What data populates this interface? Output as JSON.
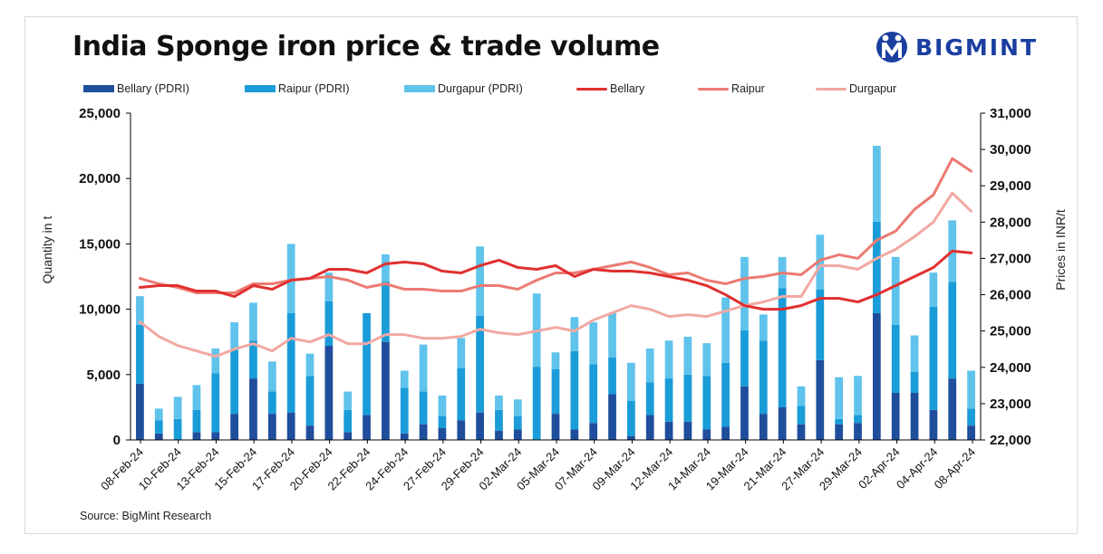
{
  "title": "India Sponge iron price & trade volume",
  "logo_text": "BIGMINT",
  "source": "Source: BigMint Research",
  "colors": {
    "bellary_bar": "#1f4e9c",
    "raipur_bar": "#1a9cd8",
    "durgapur_bar": "#60c3ec",
    "bellary_line": "#e0302f",
    "raipur_line": "#ec7a72",
    "durgapur_line": "#f2a8a2",
    "logo": "#1a3fa0"
  },
  "legend": {
    "bellary_pdri": "Bellary (PDRI)",
    "raipur_pdri": "Raipur (PDRI)",
    "durgapur_pdri": "Durgapur (PDRI)",
    "bellary": "Bellary",
    "raipur": "Raipur",
    "durgapur": "Durgapur"
  },
  "chart_data": {
    "type": "bar",
    "title": "India Sponge iron price & trade volume",
    "ylabel": "Quantity in t",
    "y2label": "Prices in INR/t",
    "ylim": [
      0,
      25000
    ],
    "y2lim": [
      22000,
      31000
    ],
    "yticks": [
      "0",
      "5,000",
      "10,000",
      "15,000",
      "20,000",
      "25,000"
    ],
    "y2ticks": [
      "22,000",
      "23,000",
      "24,000",
      "25,000",
      "26,000",
      "27,000",
      "28,000",
      "29,000",
      "30,000",
      "31,000"
    ],
    "x_tick_labels": [
      "08-Feb-24",
      "10-Feb-24",
      "13-Feb-24",
      "15-Feb-24",
      "17-Feb-24",
      "20-Feb-24",
      "22-Feb-24",
      "24-Feb-24",
      "27-Feb-24",
      "29-Feb-24",
      "02-Mar-24",
      "05-Mar-24",
      "07-Mar-24",
      "09-Mar-24",
      "12-Mar-24",
      "14-Mar-24",
      "19-Mar-24",
      "21-Mar-24",
      "27-Mar-24",
      "29-Mar-24",
      "02-Apr-24",
      "04-Apr-24",
      "08-Apr-24"
    ],
    "grid": false,
    "legend_position": "top",
    "bar_series": [
      {
        "name": "Bellary (PDRI)",
        "values": [
          4300,
          500,
          0,
          600,
          600,
          2000,
          4700,
          2000,
          2100,
          1100,
          7200,
          600,
          1900,
          7500,
          500,
          1200,
          900,
          1500,
          2100,
          700,
          800,
          0,
          2000,
          800,
          1300,
          3500,
          300,
          1900,
          1400,
          1400,
          800,
          1000,
          4100,
          2000,
          2500,
          1200,
          6100,
          1200,
          1300,
          9700,
          3600,
          3600,
          2300,
          4700,
          1100
        ]
      },
      {
        "name": "Raipur (PDRI)",
        "values": [
          4500,
          1000,
          1600,
          1700,
          4500,
          4900,
          2900,
          1700,
          7600,
          3800,
          3400,
          1700,
          7800,
          4600,
          3500,
          2500,
          900,
          4000,
          7400,
          1600,
          1000,
          5600,
          3400,
          6000,
          4500,
          2800,
          2700,
          2500,
          3300,
          3600,
          4100,
          4900,
          4300,
          5600,
          9100,
          1400,
          5400,
          400,
          600,
          7000,
          5200,
          1600,
          7900,
          7400,
          1300
        ]
      },
      {
        "name": "Durgapur (PDRI)",
        "values": [
          2200,
          900,
          1700,
          1900,
          1900,
          2100,
          2900,
          2300,
          5300,
          1700,
          2200,
          1400,
          0,
          2100,
          1300,
          3600,
          1600,
          2300,
          5300,
          1100,
          1300,
          5600,
          1300,
          2600,
          3200,
          3400,
          2900,
          2600,
          2900,
          2900,
          2500,
          5000,
          5600,
          2000,
          2400,
          1500,
          4200,
          3200,
          3000,
          5800,
          5200,
          2800,
          2600,
          4700,
          2900
        ]
      }
    ],
    "line_series": [
      {
        "name": "Bellary",
        "values": [
          26200,
          26250,
          26250,
          26100,
          26100,
          25950,
          26250,
          26150,
          26400,
          26450,
          26700,
          26700,
          26600,
          26850,
          26900,
          26850,
          26650,
          26600,
          26800,
          26950,
          26750,
          26700,
          26800,
          26500,
          26700,
          26650,
          26650,
          26600,
          26500,
          26400,
          26250,
          26000,
          25700,
          25600,
          25600,
          25700,
          25900,
          25900,
          25800,
          26000,
          26250,
          26500,
          26750,
          27200,
          27150
        ]
      },
      {
        "name": "Raipur",
        "values": [
          26450,
          26300,
          26200,
          26050,
          26050,
          26050,
          26300,
          26300,
          26400,
          26450,
          26500,
          26400,
          26200,
          26300,
          26150,
          26150,
          26100,
          26100,
          26250,
          26250,
          26150,
          26400,
          26600,
          26600,
          26700,
          26800,
          26900,
          26750,
          26550,
          26600,
          26400,
          26300,
          26450,
          26500,
          26600,
          26550,
          26950,
          27100,
          27000,
          27500,
          27750,
          28350,
          28750,
          29750,
          29400
        ]
      },
      {
        "name": "Durgapur",
        "values": [
          25250,
          24850,
          24600,
          24450,
          24300,
          24500,
          24650,
          24450,
          24800,
          24700,
          24900,
          24650,
          24650,
          24900,
          24900,
          24800,
          24800,
          24850,
          25050,
          24950,
          24900,
          25000,
          25100,
          25000,
          25300,
          25500,
          25700,
          25600,
          25400,
          25450,
          25400,
          25550,
          25700,
          25800,
          25950,
          25950,
          26800,
          26800,
          26700,
          27000,
          27250,
          27600,
          28000,
          28800,
          28300
        ]
      }
    ]
  }
}
